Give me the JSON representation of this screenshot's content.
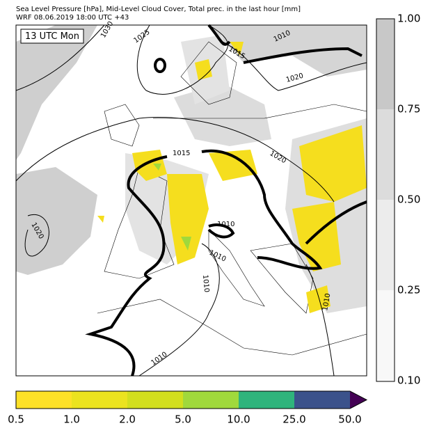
{
  "header": {
    "line1": "Sea Level Pressure [hPa], Mid-Level Cloud Cover, Total prec. in the last hour [mm]",
    "line2": "WRF 08.06.2019 18:00 UTC +43"
  },
  "map": {
    "time_label": "13 UTC Mon",
    "isobar_labels": [
      "1030",
      "1025",
      "1015",
      "1010",
      "1020",
      "1015",
      "1020",
      "1020",
      "1010",
      "1010",
      "1010",
      "1010",
      "1010"
    ]
  },
  "cloud_colorbar": {
    "labels": [
      "1.00",
      "0.75",
      "0.50",
      "0.25",
      "0.10"
    ]
  },
  "precip_colorbar": {
    "labels": [
      "0.5",
      "1.0",
      "2.0",
      "5.0",
      "10.0",
      "25.0",
      "50.0"
    ]
  }
}
